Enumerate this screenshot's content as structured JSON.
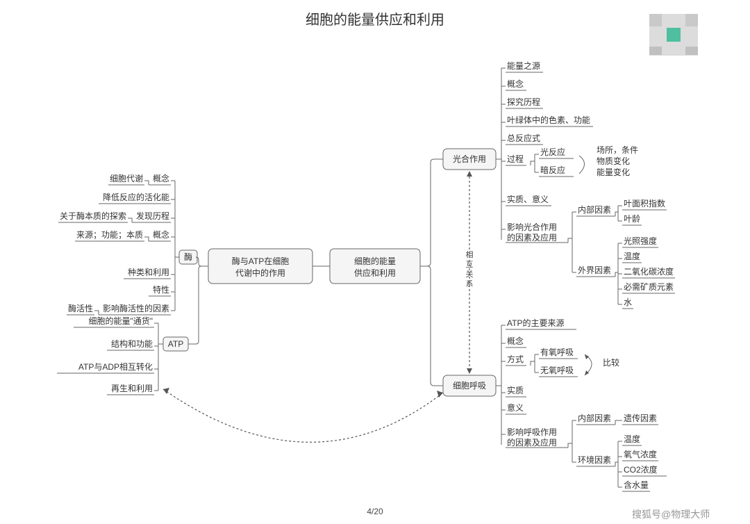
{
  "title": "细胞的能量供应和利用",
  "page": "4/20",
  "watermark": "搜狐号@物理大师",
  "center": "细胞的能量\n供应和利用",
  "left_main": "酶与ATP在细胞\n代谢中的作用",
  "enzyme_pill": "酶",
  "atp_pill": "ATP",
  "enzyme_leaves": [
    {
      "lbl": "概念",
      "sub": "细胞代谢"
    },
    {
      "lbl": "降低反应的活化能",
      "sub": ""
    },
    {
      "lbl": "发现历程",
      "sub": "关于酶本质的探索"
    },
    {
      "lbl": "概念",
      "sub": "来源；功能；本质"
    },
    {
      "lbl": "种类和利用",
      "sub": ""
    },
    {
      "lbl": "特性",
      "sub": ""
    },
    {
      "lbl": "影响酶活性的因素",
      "sub": "酶活性"
    }
  ],
  "atp_leaves": [
    "细胞的能量\"通货\"",
    "结构和功能",
    "ATP与ADP相互转化",
    "再生和利用"
  ],
  "right_top_box": "光合作用",
  "right_bot_box": "细胞呼吸",
  "relation_label": "相互关系",
  "photo_leaves": [
    "能量之源",
    "概念",
    "探究历程",
    "叶绿体中的色素、功能",
    "总反应式",
    "过程",
    "实质、意义",
    "影响光合作用的因素及应用"
  ],
  "photo_process": {
    "light": "光反应",
    "dark": "暗反应",
    "anno1": "场所，条件",
    "anno2": "物质变化",
    "anno3": "能量变化"
  },
  "photo_factors": {
    "internal": "内部因素",
    "internal_sub": [
      "叶面积指数",
      "叶龄"
    ],
    "external": "外界因素",
    "external_sub": [
      "光照强度",
      "温度",
      "二氧化碳浓度",
      "必需矿质元素",
      "水"
    ]
  },
  "resp_leaves": [
    "ATP的主要来源",
    "概念",
    "方式",
    "实质",
    "意义",
    "影响呼吸作用的因素及应用"
  ],
  "resp_mode": {
    "ao": "有氧呼吸",
    "an": "无氧呼吸",
    "cmp": "比较"
  },
  "resp_factors": {
    "internal": "内部因素",
    "internal_sub": [
      "遗传因素"
    ],
    "external": "环境因素",
    "external_sub": [
      "温度",
      "氧气浓度",
      "CO2浓度",
      "含水量"
    ]
  },
  "colors": {
    "bg": "#ffffff",
    "box_fill": "#f5f5f5",
    "stroke": "#666666",
    "text": "#333333"
  }
}
